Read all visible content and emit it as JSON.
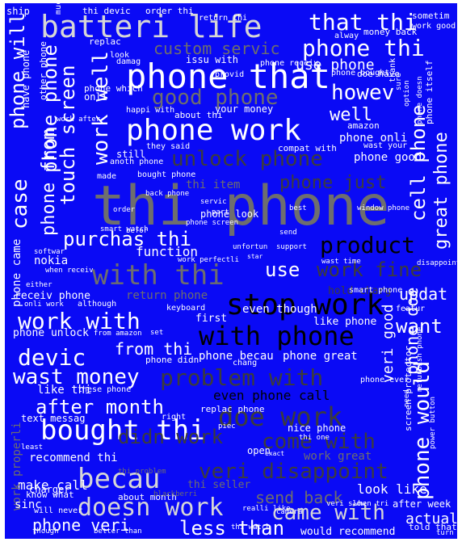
{
  "colors": {
    "background": "#0a0af5",
    "white": "#ffffff",
    "light": "#d6d6d6",
    "gray": "#6e6e6e",
    "dark_gray": "#3c3c3c",
    "black": "#000000"
  },
  "words": [
    "thi phone",
    "batteri life",
    "phone that",
    "phone work",
    "with thi",
    "stop work",
    "bought thi",
    "becau",
    "doe work",
    "with phone",
    "phone would",
    "product",
    "veri disappoint",
    "came with",
    "doesn work",
    "problem with",
    "phone will",
    "phone thi",
    "that thi",
    "touch screen",
    "wast money",
    "work with",
    "cell phone",
    "good phone",
    "unlock phone",
    "come with",
    "didn work",
    "after month",
    "work fine",
    "less than",
    "devic",
    "case",
    "work well",
    "phone just",
    "phone phone",
    "custom servic",
    "purchas thi",
    "great phone",
    "phone from",
    "howev",
    "send back",
    "phone veri",
    "use phone",
    "veri good",
    "from thi",
    "updat",
    "want",
    "make call",
    "actual",
    "use",
    "well",
    "phone doe",
    "look like",
    "even phone call",
    "phone onli",
    "phone good",
    "thi item",
    "phone becau",
    "phone great",
    "return phone",
    "function",
    "even though",
    "recommend thi",
    "phone came",
    "work properli",
    "sinc",
    "would recommend",
    "like thi",
    "text messag",
    "phone unlock",
    "receiv phone",
    "nokia",
    "thi seller",
    "work great",
    "first",
    "after week",
    "phone look",
    "hold charg",
    "like phone",
    "charger",
    "about month",
    "your money",
    "amazon",
    "onli",
    "still",
    "have phone",
    "other phone",
    "ship",
    "thi devic",
    "order thi",
    "sometim",
    "work good",
    "alway",
    "money back",
    "replac",
    "damag",
    "issu with",
    "phone receiv",
    "phone bought",
    "doe have",
    "provid",
    "thank",
    "option",
    "about thi",
    "wast your",
    "they said",
    "compat with",
    "bought phone",
    "made",
    "anoth phone",
    "back phone",
    "servic",
    "best",
    "window phone",
    "phone screen",
    "order",
    "part",
    "befor",
    "smart watch",
    "softwar",
    "when receiv",
    "either",
    "onli work",
    "although",
    "keyboard",
    "featur",
    "smart phone",
    "disappoint with",
    "wast time",
    "phone ever",
    "need",
    "power button",
    "screen protector",
    "phone itself",
    "phone doesn",
    "refurbish phone",
    "know what",
    "will never",
    "though",
    "better than",
    "realli like",
    "camera",
    "veri slow",
    "when tri",
    "turn back",
    "told that",
    "thi watch",
    "least",
    "thi problem",
    "blackberri",
    "replac phone",
    "right",
    "chang",
    "these phone",
    "nice phone",
    "open",
    "set",
    "from amazon",
    "phone didn",
    "return thi",
    "much",
    "work after",
    "phone which",
    "happi with",
    "look",
    "sure",
    "unfortun",
    "star",
    "piec",
    "thi one",
    "work perfectli",
    "support",
    "send",
    "exact",
    "mani"
  ]
}
